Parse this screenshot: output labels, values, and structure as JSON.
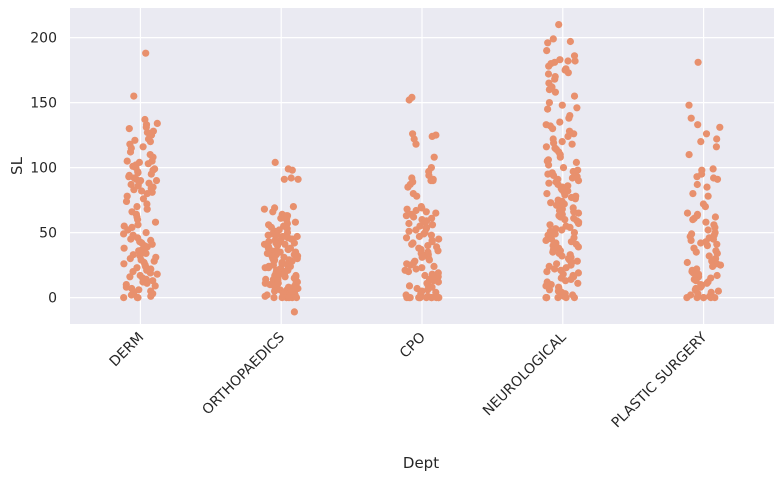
{
  "chart_data": {
    "type": "scatter",
    "subtype": "strip",
    "title": "",
    "xlabel": "Dept",
    "ylabel": "SL",
    "categories": [
      "DERM",
      "ORTHOPAEDICS",
      "CPO",
      "NEUROLOGICAL",
      "PLASTIC SURGERY"
    ],
    "ylim": [
      -20,
      222
    ],
    "yticks": [
      0,
      50,
      100,
      150,
      200
    ],
    "grid": true,
    "background": "#eaeaf2",
    "point_color": "#e8906d",
    "series": [
      {
        "category": "DERM",
        "values": [
          188,
          155,
          137,
          134,
          133,
          131,
          130,
          128,
          127,
          125,
          122,
          121,
          120,
          118,
          116,
          115,
          112,
          110,
          108,
          105,
          105,
          104,
          103,
          102,
          101,
          100,
          99,
          98,
          97,
          96,
          95,
          94,
          93,
          92,
          91,
          90,
          90,
          89,
          88,
          87,
          86,
          85,
          84,
          83,
          82,
          81,
          80,
          78,
          76,
          74,
          72,
          70,
          68,
          66,
          64,
          62,
          60,
          58,
          56,
          55,
          54,
          52,
          50,
          49,
          48,
          47,
          46,
          45,
          44,
          43,
          42,
          41,
          40,
          39,
          38,
          37,
          36,
          35,
          34,
          33,
          32,
          31,
          30,
          29,
          28,
          27,
          26,
          25,
          24,
          23,
          22,
          21,
          20,
          19,
          18,
          17,
          16,
          15,
          14,
          13,
          12,
          11,
          10,
          9,
          8,
          7,
          6,
          5,
          4,
          3,
          2,
          1,
          0,
          0,
          0
        ]
      },
      {
        "category": "ORTHOPAEDICS",
        "values": [
          104,
          99,
          98,
          92,
          91,
          91,
          70,
          69,
          68,
          66,
          64,
          63,
          63,
          62,
          61,
          60,
          58,
          57,
          56,
          55,
          54,
          53,
          52,
          51,
          50,
          50,
          49,
          49,
          48,
          48,
          47,
          47,
          46,
          46,
          45,
          45,
          44,
          44,
          43,
          43,
          42,
          42,
          41,
          41,
          40,
          40,
          39,
          39,
          38,
          38,
          37,
          37,
          36,
          36,
          35,
          35,
          34,
          34,
          33,
          33,
          32,
          32,
          31,
          31,
          30,
          30,
          29,
          29,
          28,
          28,
          27,
          27,
          26,
          26,
          25,
          25,
          24,
          24,
          23,
          23,
          22,
          22,
          21,
          21,
          20,
          20,
          19,
          19,
          18,
          18,
          17,
          17,
          16,
          16,
          15,
          15,
          14,
          14,
          13,
          13,
          12,
          12,
          11,
          11,
          10,
          10,
          9,
          9,
          8,
          8,
          7,
          7,
          6,
          6,
          5,
          5,
          4,
          4,
          3,
          3,
          2,
          2,
          1,
          1,
          0,
          0,
          0,
          0,
          0,
          0,
          -11
        ]
      },
      {
        "category": "CPO",
        "values": [
          154,
          152,
          126,
          125,
          124,
          122,
          118,
          108,
          100,
          97,
          94,
          92,
          91,
          90,
          90,
          89,
          87,
          85,
          80,
          78,
          70,
          69,
          68,
          67,
          66,
          65,
          64,
          63,
          62,
          61,
          60,
          59,
          58,
          57,
          56,
          55,
          54,
          53,
          52,
          51,
          50,
          49,
          48,
          47,
          46,
          45,
          44,
          43,
          42,
          41,
          40,
          39,
          38,
          37,
          36,
          35,
          34,
          33,
          32,
          31,
          30,
          29,
          28,
          27,
          26,
          25,
          24,
          23,
          22,
          21,
          20,
          19,
          18,
          17,
          16,
          15,
          14,
          13,
          12,
          11,
          10,
          9,
          8,
          7,
          6,
          5,
          4,
          3,
          2,
          1,
          0,
          0,
          0,
          0,
          0,
          0,
          0,
          0,
          0,
          0,
          0,
          0
        ]
      },
      {
        "category": "NEUROLOGICAL",
        "values": [
          210,
          199,
          197,
          196,
          190,
          186,
          183,
          182,
          182,
          181,
          180,
          178,
          176,
          175,
          173,
          172,
          170,
          168,
          165,
          162,
          160,
          158,
          155,
          150,
          148,
          146,
          145,
          140,
          138,
          135,
          133,
          132,
          130,
          128,
          126,
          124,
          122,
          120,
          119,
          118,
          116,
          115,
          114,
          112,
          110,
          108,
          106,
          105,
          104,
          102,
          100,
          98,
          97,
          96,
          95,
          94,
          93,
          92,
          91,
          90,
          89,
          88,
          87,
          86,
          85,
          84,
          83,
          82,
          81,
          80,
          79,
          78,
          77,
          76,
          75,
          74,
          73,
          72,
          71,
          70,
          69,
          68,
          67,
          66,
          65,
          64,
          63,
          62,
          61,
          60,
          59,
          58,
          57,
          56,
          55,
          54,
          53,
          52,
          51,
          50,
          49,
          48,
          47,
          46,
          45,
          44,
          43,
          42,
          41,
          40,
          39,
          38,
          37,
          36,
          35,
          34,
          33,
          32,
          31,
          30,
          29,
          28,
          27,
          26,
          25,
          24,
          23,
          22,
          21,
          20,
          19,
          18,
          17,
          16,
          15,
          14,
          13,
          12,
          11,
          10,
          9,
          8,
          7,
          6,
          5,
          4,
          3,
          2,
          1,
          0,
          0,
          0,
          0,
          0,
          0
        ]
      },
      {
        "category": "PLASTIC SURGERY",
        "values": [
          181,
          148,
          138,
          133,
          131,
          126,
          122,
          120,
          116,
          110,
          99,
          98,
          95,
          93,
          92,
          91,
          87,
          85,
          80,
          78,
          72,
          70,
          65,
          64,
          63,
          62,
          61,
          60,
          58,
          56,
          54,
          52,
          50,
          49,
          48,
          47,
          46,
          45,
          44,
          43,
          42,
          41,
          40,
          38,
          36,
          35,
          34,
          32,
          30,
          28,
          27,
          26,
          25,
          24,
          22,
          21,
          20,
          19,
          18,
          17,
          16,
          15,
          14,
          13,
          12,
          11,
          10,
          9,
          8,
          7,
          6,
          5,
          4,
          3,
          2,
          1,
          0,
          0,
          0,
          0,
          0,
          0
        ]
      }
    ]
  }
}
